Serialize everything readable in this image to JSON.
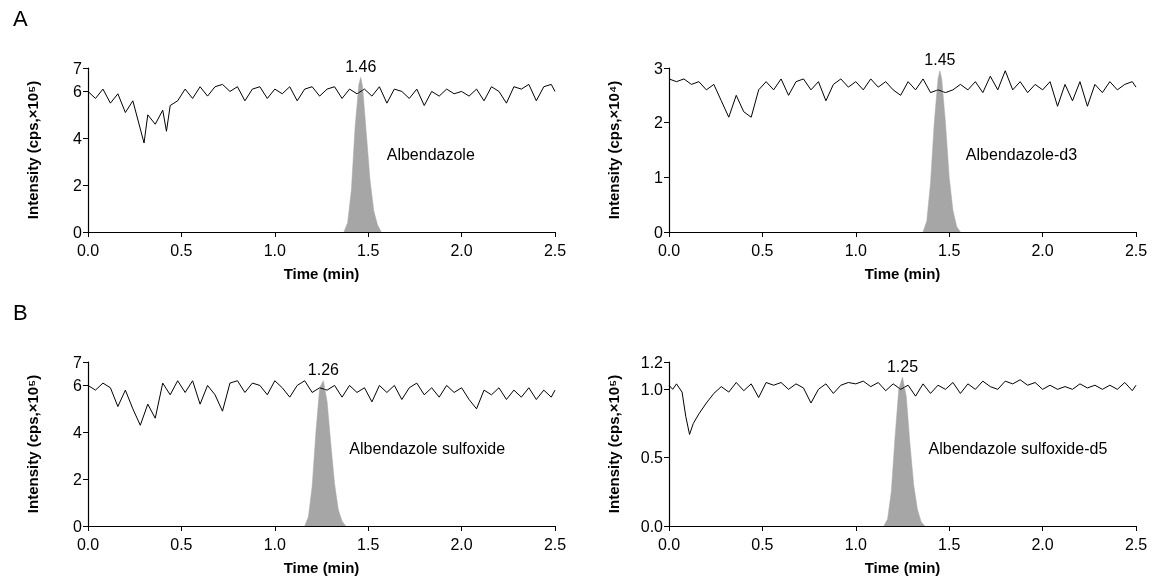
{
  "chart_data": [
    {
      "type": "line",
      "title": "A",
      "xlabel": "Time (min)",
      "ylabel": "Intensity (cps,×10⁵)",
      "xlim": [
        0,
        2.5
      ],
      "xticks": [
        {
          "value": 0,
          "label": "0.0"
        },
        0.5,
        {
          "value": 1,
          "label": "1.0"
        },
        1.5,
        {
          "value": 2,
          "label": "2.0"
        },
        2.5
      ],
      "ylim": [
        0,
        7
      ],
      "yticks": [
        0,
        2,
        4,
        6,
        7
      ],
      "annotations": [
        {
          "text": "1.46",
          "x": 1.46,
          "y": 6.6
        },
        "Albendazole"
      ],
      "series": [
        {
          "color": "#000000",
          "x": [
            0,
            0.04,
            0.08,
            0.12,
            0.16,
            0.2,
            0.24,
            0.28,
            0.3,
            0.32,
            0.36,
            0.4,
            0.42,
            0.44,
            0.48,
            0.52,
            0.56,
            0.6,
            0.64,
            0.68,
            0.72,
            0.76,
            0.8,
            0.84,
            0.88,
            0.92,
            0.96,
            1,
            1.04,
            1.08,
            1.12,
            1.16,
            1.2,
            1.24,
            1.28,
            1.32,
            1.36,
            1.4,
            1.44,
            1.48,
            1.52,
            1.56,
            1.6,
            1.64,
            1.68,
            1.72,
            1.76,
            1.8,
            1.84,
            1.88,
            1.92,
            1.96,
            2,
            2.04,
            2.08,
            2.12,
            2.16,
            2.2,
            2.24,
            2.28,
            2.32,
            2.36,
            2.4,
            2.44,
            2.48,
            2.5
          ],
          "values": [
            6.0,
            5.7,
            6.1,
            5.5,
            5.9,
            5.1,
            5.6,
            4.4,
            3.8,
            5.0,
            4.6,
            5.2,
            4.3,
            5.4,
            5.6,
            6.1,
            5.7,
            6.2,
            5.8,
            6.2,
            6.3,
            6.0,
            6.2,
            5.6,
            6.1,
            6.2,
            5.7,
            6.1,
            5.9,
            6.2,
            5.6,
            6.1,
            6.2,
            5.8,
            6.1,
            6.2,
            5.7,
            6.1,
            5.9,
            6.1,
            5.8,
            6.2,
            5.5,
            6.1,
            6.0,
            5.7,
            6.1,
            5.4,
            6.0,
            5.8,
            6.1,
            5.9,
            6.0,
            5.8,
            6.1,
            5.6,
            6.2,
            6.0,
            5.5,
            6.2,
            6.1,
            6.3,
            5.6,
            6.2,
            6.3,
            6.0
          ]
        },
        {
          "type": "area",
          "color": "#a6a6a6",
          "x": [
            1.37,
            1.39,
            1.41,
            1.43,
            1.45,
            1.46,
            1.47,
            1.49,
            1.51,
            1.53,
            1.55,
            1.57
          ],
          "values": [
            0,
            0.4,
            1.8,
            4.5,
            6.3,
            6.6,
            6.2,
            4.2,
            2.2,
            0.9,
            0.3,
            0
          ]
        }
      ]
    },
    {
      "type": "line",
      "xlabel": "Time (min)",
      "ylabel": "Intensity (cps,×10⁴)",
      "xlim": [
        0,
        2.5
      ],
      "xticks": [
        {
          "value": 0,
          "label": "0.0"
        },
        0.5,
        {
          "value": 1,
          "label": "1.0"
        },
        1.5,
        {
          "value": 2,
          "label": "2.0"
        },
        2.5
      ],
      "ylim": [
        0,
        3
      ],
      "yticks": [
        0,
        1,
        2,
        3
      ],
      "annotations": [
        {
          "text": "1.45",
          "x": 1.45,
          "y": 2.95
        },
        "Albendazole-d3"
      ],
      "series": [
        {
          "color": "#000000",
          "x": [
            0,
            0.04,
            0.08,
            0.12,
            0.16,
            0.2,
            0.24,
            0.28,
            0.32,
            0.36,
            0.4,
            0.44,
            0.48,
            0.52,
            0.56,
            0.6,
            0.64,
            0.68,
            0.72,
            0.76,
            0.8,
            0.84,
            0.88,
            0.92,
            0.96,
            1,
            1.04,
            1.08,
            1.12,
            1.16,
            1.2,
            1.24,
            1.28,
            1.32,
            1.36,
            1.4,
            1.44,
            1.48,
            1.52,
            1.56,
            1.6,
            1.64,
            1.68,
            1.72,
            1.76,
            1.8,
            1.84,
            1.88,
            1.92,
            1.96,
            2,
            2.04,
            2.08,
            2.12,
            2.16,
            2.2,
            2.24,
            2.28,
            2.32,
            2.36,
            2.4,
            2.44,
            2.48,
            2.5
          ],
          "values": [
            2.8,
            2.75,
            2.8,
            2.7,
            2.75,
            2.6,
            2.7,
            2.4,
            2.1,
            2.5,
            2.2,
            2.1,
            2.6,
            2.75,
            2.6,
            2.8,
            2.5,
            2.75,
            2.8,
            2.6,
            2.75,
            2.4,
            2.7,
            2.8,
            2.65,
            2.75,
            2.6,
            2.8,
            2.65,
            2.75,
            2.6,
            2.5,
            2.75,
            2.6,
            2.8,
            2.55,
            2.6,
            2.55,
            2.6,
            2.7,
            2.6,
            2.75,
            2.55,
            2.85,
            2.6,
            2.95,
            2.6,
            2.75,
            2.55,
            2.7,
            2.6,
            2.75,
            2.3,
            2.7,
            2.4,
            2.75,
            2.3,
            2.7,
            2.55,
            2.75,
            2.6,
            2.7,
            2.75,
            2.65
          ]
        },
        {
          "type": "area",
          "color": "#a6a6a6",
          "x": [
            1.36,
            1.38,
            1.4,
            1.42,
            1.44,
            1.45,
            1.46,
            1.48,
            1.5,
            1.52,
            1.54,
            1.56
          ],
          "values": [
            0,
            0.2,
            0.9,
            2.0,
            2.8,
            2.95,
            2.8,
            2.0,
            1.0,
            0.4,
            0.1,
            0
          ]
        }
      ]
    },
    {
      "type": "line",
      "title": "B",
      "xlabel": "Time (min)",
      "ylabel": "Intensity (cps,×10⁵)",
      "xlim": [
        0,
        2.5
      ],
      "xticks": [
        {
          "value": 0,
          "label": "0.0"
        },
        0.5,
        {
          "value": 1,
          "label": "1.0"
        },
        1.5,
        {
          "value": 2,
          "label": "2.0"
        },
        2.5
      ],
      "ylim": [
        0,
        7
      ],
      "yticks": [
        0,
        2,
        4,
        6,
        7
      ],
      "annotations": [
        {
          "text": "1.26",
          "x": 1.26,
          "y": 6.2
        },
        "Albendazole sulfoxide"
      ],
      "series": [
        {
          "color": "#000000",
          "x": [
            0,
            0.04,
            0.08,
            0.12,
            0.16,
            0.2,
            0.24,
            0.28,
            0.32,
            0.36,
            0.4,
            0.44,
            0.48,
            0.52,
            0.56,
            0.6,
            0.64,
            0.68,
            0.72,
            0.76,
            0.8,
            0.84,
            0.88,
            0.92,
            0.96,
            1,
            1.04,
            1.08,
            1.12,
            1.16,
            1.2,
            1.24,
            1.28,
            1.32,
            1.36,
            1.4,
            1.44,
            1.48,
            1.52,
            1.56,
            1.6,
            1.64,
            1.68,
            1.72,
            1.76,
            1.8,
            1.84,
            1.88,
            1.92,
            1.96,
            2,
            2.04,
            2.08,
            2.12,
            2.16,
            2.2,
            2.24,
            2.28,
            2.32,
            2.36,
            2.4,
            2.44,
            2.48,
            2.5
          ],
          "values": [
            6.0,
            5.8,
            6.1,
            5.9,
            5.1,
            5.8,
            5.0,
            4.3,
            5.2,
            4.6,
            6.1,
            5.6,
            6.2,
            5.7,
            6.2,
            5.2,
            6.0,
            5.6,
            4.9,
            6.1,
            6.2,
            5.7,
            6.1,
            6.0,
            5.6,
            6.2,
            5.9,
            5.5,
            6.0,
            6.2,
            5.7,
            5.9,
            5.8,
            6.0,
            5.5,
            6.0,
            5.7,
            5.9,
            5.3,
            6.0,
            5.7,
            6.0,
            5.4,
            5.9,
            6.1,
            5.6,
            5.9,
            5.5,
            6.0,
            5.7,
            5.9,
            5.4,
            5.0,
            5.8,
            5.6,
            5.9,
            5.4,
            5.8,
            5.5,
            5.9,
            5.4,
            5.8,
            5.5,
            5.8
          ]
        },
        {
          "type": "area",
          "color": "#a6a6a6",
          "x": [
            1.16,
            1.18,
            1.2,
            1.22,
            1.24,
            1.26,
            1.28,
            1.3,
            1.32,
            1.34,
            1.36,
            1.38
          ],
          "values": [
            0,
            0.4,
            1.7,
            4.0,
            5.9,
            6.2,
            5.3,
            3.5,
            1.8,
            0.7,
            0.2,
            0
          ]
        }
      ]
    },
    {
      "type": "line",
      "xlabel": "Time (min)",
      "ylabel": "Intensity (cps,×10⁵)",
      "xlim": [
        0,
        2.5
      ],
      "xticks": [
        {
          "value": 0,
          "label": "0.0"
        },
        0.5,
        {
          "value": 1,
          "label": "1.0"
        },
        1.5,
        {
          "value": 2,
          "label": "2.0"
        },
        2.5
      ],
      "ylim": [
        0,
        1.2
      ],
      "yticks": [
        {
          "value": 0,
          "label": "0.0"
        },
        0.5,
        {
          "value": 1,
          "label": "1.0"
        },
        1.2
      ],
      "annotations": [
        {
          "text": "1.25",
          "x": 1.25,
          "y": 1.09
        },
        "Albendazole sulfoxide-d5"
      ],
      "series": [
        {
          "color": "#000000",
          "x": [
            0,
            0.02,
            0.04,
            0.07,
            0.09,
            0.11,
            0.13,
            0.16,
            0.2,
            0.24,
            0.28,
            0.32,
            0.36,
            0.4,
            0.44,
            0.48,
            0.52,
            0.56,
            0.6,
            0.64,
            0.68,
            0.72,
            0.76,
            0.8,
            0.84,
            0.88,
            0.92,
            0.96,
            1,
            1.04,
            1.08,
            1.12,
            1.16,
            1.2,
            1.24,
            1.28,
            1.32,
            1.36,
            1.4,
            1.44,
            1.48,
            1.52,
            1.56,
            1.6,
            1.64,
            1.68,
            1.72,
            1.76,
            1.8,
            1.84,
            1.88,
            1.92,
            1.96,
            2,
            2.04,
            2.08,
            2.12,
            2.16,
            2.2,
            2.24,
            2.28,
            2.32,
            2.36,
            2.4,
            2.44,
            2.48,
            2.5
          ],
          "values": [
            1.03,
            1.0,
            1.04,
            0.98,
            0.8,
            0.67,
            0.75,
            0.82,
            0.9,
            0.97,
            1.02,
            0.98,
            1.05,
            0.99,
            1.04,
            0.94,
            1.05,
            1.03,
            1.05,
            1.0,
            1.04,
            1.01,
            0.9,
            1.0,
            1.04,
            0.97,
            1.03,
            1.05,
            1.04,
            1.06,
            1.02,
            1.05,
            0.99,
            1.04,
            1.0,
            1.03,
            0.95,
            1.04,
            0.97,
            1.03,
            1.0,
            1.05,
            0.97,
            1.04,
            1.0,
            1.06,
            1.02,
            1.0,
            1.06,
            1.04,
            1.07,
            1.03,
            1.05,
            1.0,
            1.03,
            1.0,
            1.02,
            1.0,
            1.04,
            1.01,
            1.03,
            1.0,
            1.03,
            1.0,
            1.05,
            0.99,
            1.03
          ]
        },
        {
          "type": "area",
          "color": "#a6a6a6",
          "x": [
            1.15,
            1.17,
            1.19,
            1.21,
            1.23,
            1.25,
            1.27,
            1.29,
            1.31,
            1.33,
            1.35,
            1.37
          ],
          "values": [
            0,
            0.05,
            0.25,
            0.65,
            1.0,
            1.09,
            0.95,
            0.6,
            0.3,
            0.12,
            0.03,
            0
          ]
        }
      ]
    }
  ]
}
